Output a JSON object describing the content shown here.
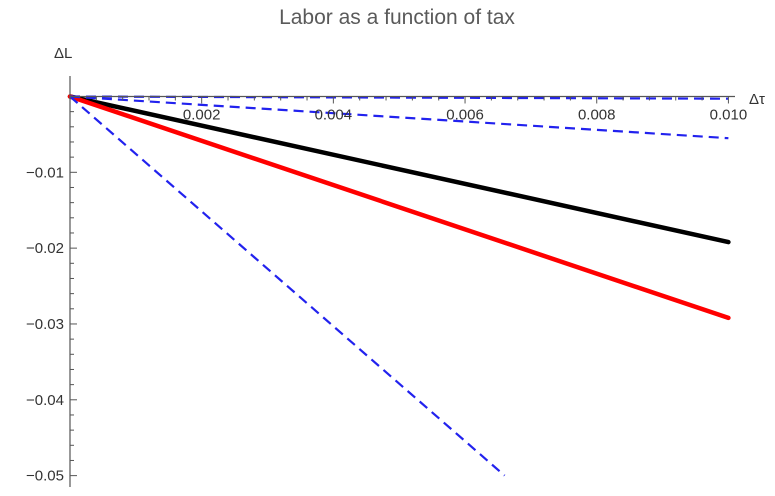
{
  "chart_data": {
    "type": "line",
    "title": "Labor as a function of tax",
    "xlabel": "Δτ",
    "ylabel": "ΔL",
    "xlim": [
      0,
      0.0101
    ],
    "ylim": [
      -0.0515,
      0.0027
    ],
    "x_ticks": [
      {
        "value": 0.002,
        "label": "0.002"
      },
      {
        "value": 0.004,
        "label": "0.004"
      },
      {
        "value": 0.006,
        "label": "0.006"
      },
      {
        "value": 0.008,
        "label": "0.008"
      },
      {
        "value": 0.01,
        "label": "0.010"
      }
    ],
    "y_ticks": [
      {
        "value": -0.01,
        "label": "−0.01"
      },
      {
        "value": -0.02,
        "label": "−0.02"
      },
      {
        "value": -0.03,
        "label": "−0.03"
      },
      {
        "value": -0.04,
        "label": "−0.04"
      },
      {
        "value": -0.05,
        "label": "−0.05"
      }
    ],
    "grid": false,
    "series": [
      {
        "x": [
          0,
          0.01
        ],
        "y": [
          0,
          -0.0192
        ],
        "color": "#000000",
        "style": "solid"
      },
      {
        "x": [
          0,
          0.01
        ],
        "y": [
          0,
          -0.0292
        ],
        "color": "#ff0000",
        "style": "solid"
      },
      {
        "x": [
          0,
          0.01
        ],
        "y": [
          0,
          -0.0003
        ],
        "color": "#2222ee",
        "style": "dashed"
      },
      {
        "x": [
          0,
          0.01
        ],
        "y": [
          0,
          -0.0055
        ],
        "color": "#2222ee",
        "style": "dashed"
      },
      {
        "x": [
          0,
          0.0066
        ],
        "y": [
          0,
          -0.05
        ],
        "color": "#2222ee",
        "style": "dashed"
      }
    ]
  }
}
